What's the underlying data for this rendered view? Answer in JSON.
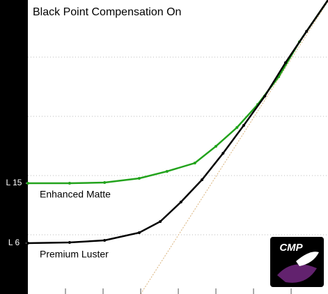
{
  "chart_data": {
    "type": "line",
    "title": "Black Point Compensation On",
    "logo_text": "CMP",
    "xlim": [
      0,
      7.98
    ],
    "xticks": [
      1,
      2,
      3,
      4,
      5,
      6,
      7
    ],
    "ylim": [
      -1.64,
      42.52
    ],
    "yticks": [
      {
        "value": 15,
        "label": "L 15"
      },
      {
        "value": 6,
        "label": "L 6"
      }
    ],
    "series": [
      {
        "name": "Enhanced Matte",
        "color": "#22a31c",
        "x": [
          0,
          1.11,
          2.04,
          2.96,
          3.7,
          4.44,
          5.0,
          5.56,
          6.11,
          6.67,
          7.22,
          7.98
        ],
        "values": [
          15.0,
          15.0,
          15.1,
          15.73,
          16.78,
          18.03,
          20.55,
          23.37,
          26.82,
          31.0,
          36.24,
          42.52
        ]
      },
      {
        "name": "Premium Luster",
        "color": "#000000",
        "x": [
          0,
          1.11,
          2.04,
          2.96,
          3.52,
          4.07,
          4.63,
          5.19,
          5.74,
          6.3,
          6.85,
          7.41,
          7.98
        ],
        "values": [
          6.0,
          6.1,
          6.42,
          7.57,
          9.24,
          12.17,
          15.52,
          19.5,
          23.69,
          28.08,
          33.1,
          37.81,
          42.52
        ]
      }
    ]
  }
}
